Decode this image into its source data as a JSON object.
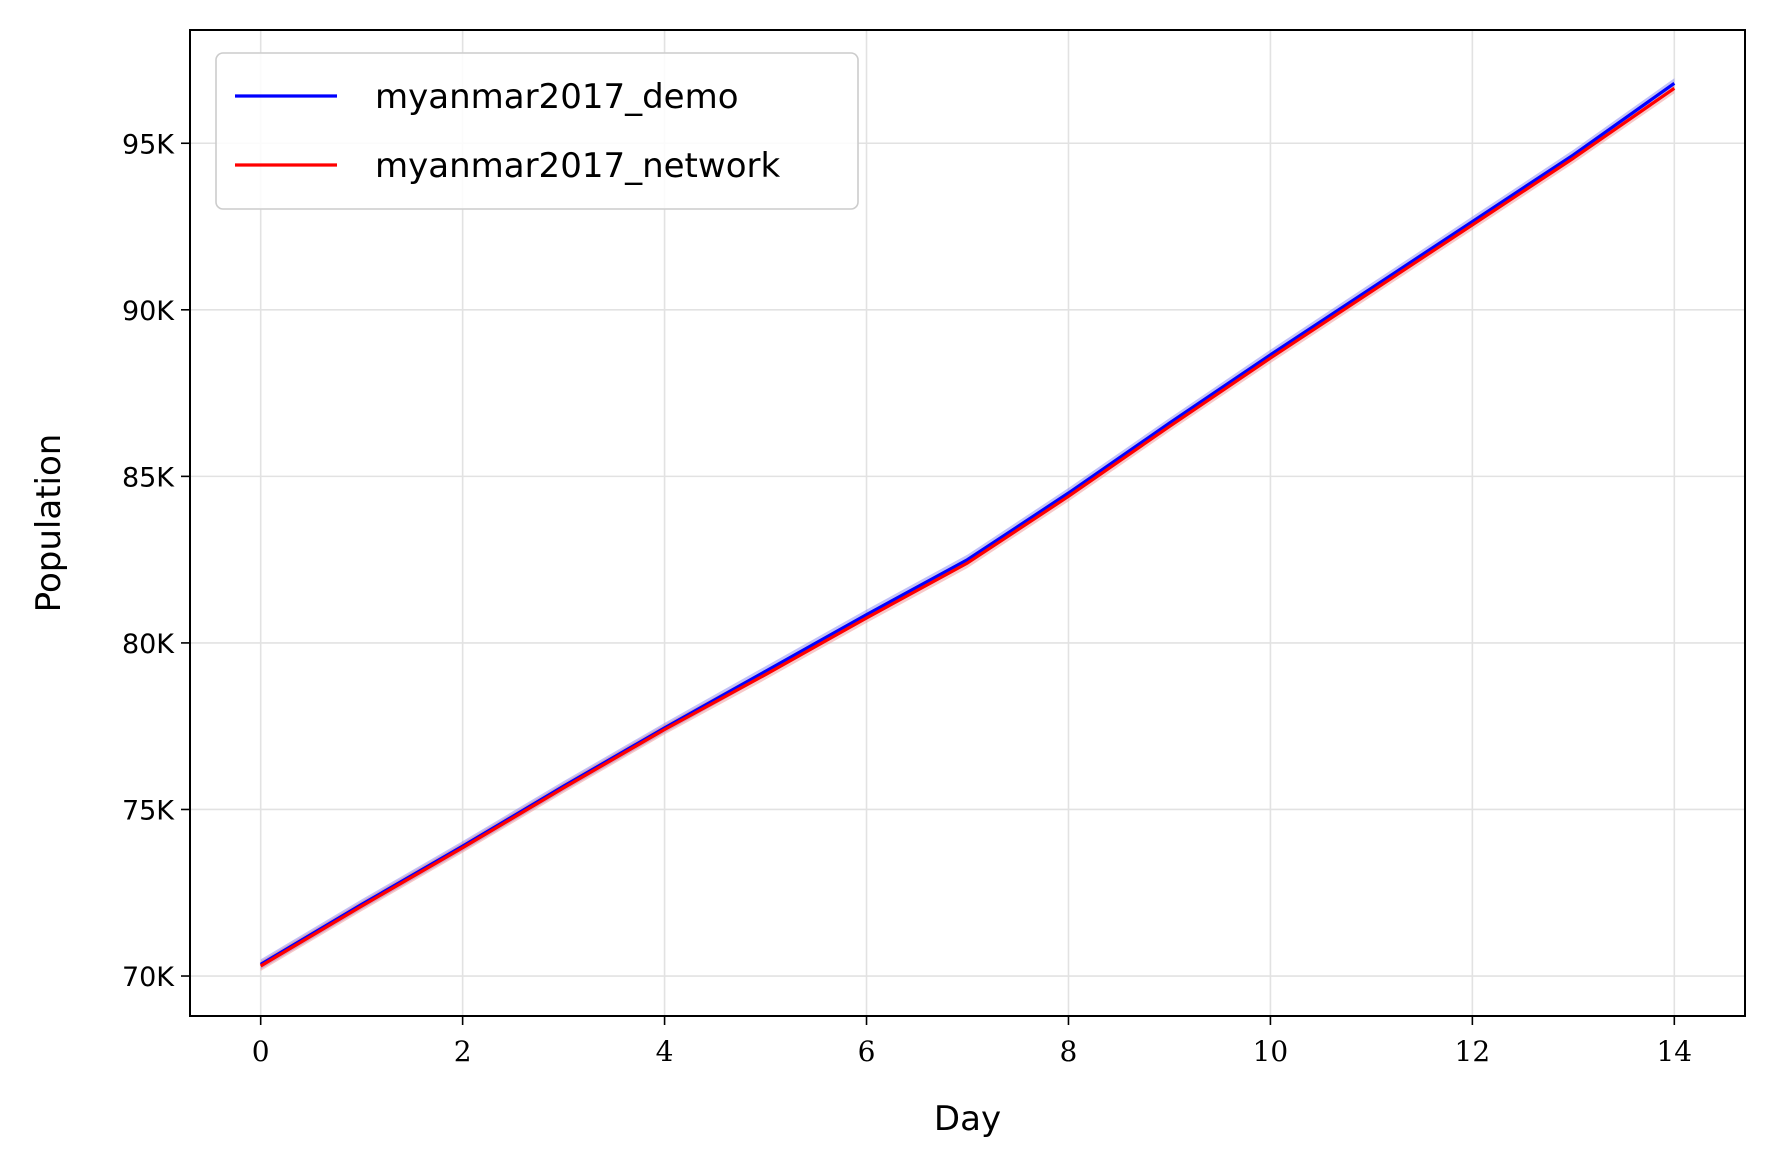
{
  "chart_data": {
    "type": "line",
    "xlabel": "Day",
    "ylabel": "Population",
    "xlim": [
      -0.7,
      14.7
    ],
    "ylim": [
      68800,
      98400
    ],
    "x_ticks": [
      0,
      2,
      4,
      6,
      8,
      10,
      12,
      14
    ],
    "x_tick_labels": [
      "0",
      "2",
      "4",
      "6",
      "8",
      "10",
      "12",
      "14"
    ],
    "y_ticks": [
      70000,
      75000,
      80000,
      85000,
      90000,
      95000
    ],
    "y_tick_labels": [
      "70K",
      "75K",
      "80K",
      "85K",
      "90K",
      "95K"
    ],
    "grid": true,
    "legend_position": "top-left",
    "x": [
      0,
      1,
      2,
      3,
      4,
      5,
      6,
      7,
      8,
      9,
      10,
      11,
      12,
      13,
      14
    ],
    "series": [
      {
        "name": "myanmar2017_demo",
        "color": "#0000ff",
        "band_color": "#7777ee",
        "values": [
          70350,
          72150,
          73900,
          75700,
          77450,
          79150,
          80850,
          82500,
          84500,
          86600,
          88650,
          90650,
          92650,
          94650,
          96800
        ],
        "band": 150
      },
      {
        "name": "myanmar2017_network",
        "color": "#ff0000",
        "band_color": "#ee8888",
        "values": [
          70300,
          72100,
          73850,
          75650,
          77400,
          79050,
          80750,
          82400,
          84400,
          86500,
          88550,
          90550,
          92550,
          94550,
          96650
        ],
        "band": 150
      }
    ]
  }
}
